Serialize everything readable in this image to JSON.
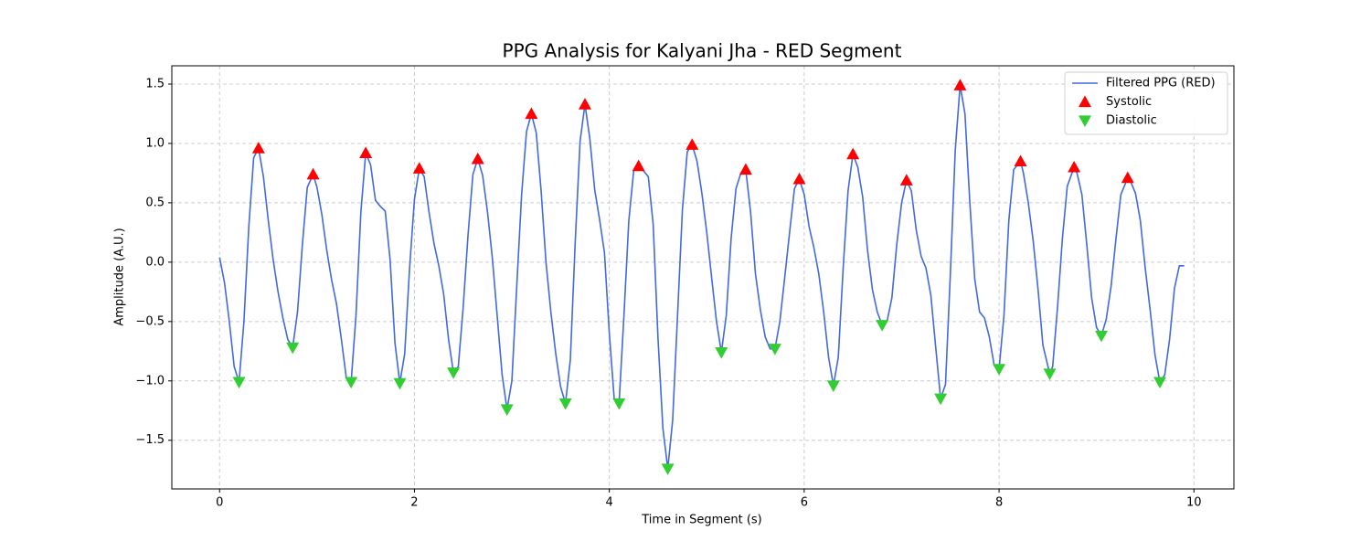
{
  "chart_data": {
    "type": "line",
    "title": "PPG Analysis for Kalyani Jha - RED Segment",
    "x_label": "Time in Segment (s)",
    "y_label": "Amplitude (A.U.)",
    "xlim": [
      -0.49,
      10.41
    ],
    "ylim": [
      -1.91,
      1.654
    ],
    "xticks": [
      0,
      2,
      4,
      6,
      8,
      10
    ],
    "yticks": [
      {
        "value": -1.5,
        "label": "−1.5"
      },
      {
        "value": -1.0,
        "label": "−1.0"
      },
      {
        "value": -0.5,
        "label": "−0.5"
      },
      {
        "value": 0,
        "label": "0.0"
      },
      {
        "value": 0.5,
        "label": "0.5"
      },
      {
        "value": 1.0,
        "label": "1.0"
      },
      {
        "value": 1.5,
        "label": "1.5"
      }
    ],
    "grid": true,
    "legend": "upper right",
    "series": [
      {
        "name": "Filtered PPG (RED)",
        "color": "#4169e1",
        "kind": "line",
        "x": [
          0,
          0.05,
          0.1,
          0.15,
          0.2,
          0.25,
          0.3,
          0.35,
          0.4,
          0.45,
          0.5,
          0.55,
          0.6,
          0.65,
          0.7,
          0.75,
          0.8,
          0.85,
          0.9,
          0.96,
          1.0,
          1.05,
          1.1,
          1.15,
          1.2,
          1.25,
          1.3,
          1.35,
          1.4,
          1.45,
          1.5,
          1.55,
          1.6,
          1.65,
          1.7,
          1.75,
          1.8,
          1.85,
          1.9,
          1.95,
          2.0,
          2.05,
          2.1,
          2.15,
          2.2,
          2.25,
          2.3,
          2.35,
          2.4,
          2.45,
          2.5,
          2.55,
          2.6,
          2.65,
          2.7,
          2.75,
          2.8,
          2.85,
          2.9,
          2.95,
          3.0,
          3.05,
          3.1,
          3.15,
          3.2,
          3.25,
          3.3,
          3.35,
          3.4,
          3.45,
          3.5,
          3.55,
          3.6,
          3.65,
          3.7,
          3.75,
          3.8,
          3.85,
          3.9,
          3.95,
          4.0,
          4.05,
          4.1,
          4.15,
          4.2,
          4.25,
          4.3,
          4.35,
          4.4,
          4.45,
          4.5,
          4.55,
          4.6,
          4.65,
          4.7,
          4.75,
          4.8,
          4.85,
          4.9,
          4.95,
          5.0,
          5.05,
          5.1,
          5.15,
          5.2,
          5.25,
          5.3,
          5.35,
          5.4,
          5.45,
          5.5,
          5.55,
          5.6,
          5.65,
          5.7,
          5.75,
          5.8,
          5.85,
          5.9,
          5.95,
          6.0,
          6.05,
          6.1,
          6.15,
          6.2,
          6.25,
          6.3,
          6.35,
          6.4,
          6.45,
          6.5,
          6.55,
          6.6,
          6.65,
          6.7,
          6.75,
          6.8,
          6.85,
          6.9,
          6.95,
          7.0,
          7.05,
          7.1,
          7.15,
          7.2,
          7.25,
          7.3,
          7.35,
          7.4,
          7.45,
          7.5,
          7.55,
          7.6,
          7.65,
          7.7,
          7.75,
          7.8,
          7.85,
          7.9,
          7.95,
          8.0,
          8.05,
          8.1,
          8.15,
          8.22,
          8.25,
          8.3,
          8.35,
          8.4,
          8.45,
          8.52,
          8.55,
          8.6,
          8.65,
          8.7,
          8.77,
          8.8,
          8.85,
          8.9,
          8.95,
          9.0,
          9.05,
          9.1,
          9.15,
          9.2,
          9.25,
          9.32,
          9.35,
          9.4,
          9.45,
          9.5,
          9.55,
          9.6,
          9.65,
          9.7,
          9.75,
          9.8,
          9.85,
          9.9
        ],
        "values": [
          0.04,
          -0.17,
          -0.5,
          -0.88,
          -1.01,
          -0.5,
          0.3,
          0.88,
          0.96,
          0.72,
          0.35,
          0.02,
          -0.25,
          -0.47,
          -0.65,
          -0.72,
          -0.42,
          0.15,
          0.63,
          0.74,
          0.63,
          0.4,
          0.1,
          -0.15,
          -0.35,
          -0.65,
          -0.97,
          -1.01,
          -0.45,
          0.42,
          0.92,
          0.82,
          0.52,
          0.47,
          0.43,
          0.02,
          -0.68,
          -1.02,
          -0.77,
          -0.05,
          0.53,
          0.79,
          0.72,
          0.42,
          0.16,
          -0.03,
          -0.27,
          -0.65,
          -0.93,
          -0.88,
          -0.38,
          0.23,
          0.74,
          0.87,
          0.73,
          0.42,
          0.03,
          -0.46,
          -0.95,
          -1.24,
          -1.0,
          -0.2,
          0.57,
          1.1,
          1.25,
          1.09,
          0.6,
          0.0,
          -0.42,
          -0.77,
          -1.05,
          -1.19,
          -0.82,
          0.17,
          1.02,
          1.33,
          1.04,
          0.61,
          0.36,
          0.08,
          -0.6,
          -1.15,
          -1.19,
          -0.45,
          0.35,
          0.77,
          0.81,
          0.77,
          0.72,
          0.32,
          -0.65,
          -1.4,
          -1.74,
          -1.33,
          -0.45,
          0.44,
          0.93,
          0.99,
          0.85,
          0.58,
          0.25,
          -0.13,
          -0.5,
          -0.76,
          -0.45,
          0.2,
          0.62,
          0.75,
          0.78,
          0.42,
          -0.1,
          -0.4,
          -0.63,
          -0.73,
          -0.73,
          -0.5,
          -0.13,
          0.25,
          0.62,
          0.7,
          0.57,
          0.3,
          0.12,
          -0.1,
          -0.42,
          -0.8,
          -1.04,
          -0.8,
          -0.05,
          0.6,
          0.91,
          0.8,
          0.55,
          0.1,
          -0.23,
          -0.42,
          -0.53,
          -0.5,
          -0.3,
          0.15,
          0.5,
          0.69,
          0.6,
          0.27,
          0.05,
          -0.05,
          -0.28,
          -0.72,
          -1.15,
          -1.03,
          -0.1,
          0.94,
          1.49,
          1.25,
          0.5,
          -0.14,
          -0.42,
          -0.47,
          -0.63,
          -0.87,
          -0.9,
          -0.45,
          0.35,
          0.78,
          0.85,
          0.75,
          0.5,
          0.18,
          -0.23,
          -0.7,
          -0.94,
          -0.88,
          -0.38,
          0.2,
          0.64,
          0.8,
          0.75,
          0.57,
          0.15,
          -0.3,
          -0.55,
          -0.62,
          -0.48,
          -0.2,
          0.2,
          0.57,
          0.71,
          0.68,
          0.58,
          0.35,
          -0.05,
          -0.4,
          -0.78,
          -1.01,
          -0.95,
          -0.65,
          -0.22,
          -0.03,
          -0.03
        ]
      },
      {
        "name": "Systolic",
        "color": "#ff0000",
        "kind": "up",
        "x": [
          0.4,
          0.96,
          1.5,
          2.05,
          2.65,
          3.2,
          3.75,
          4.3,
          4.85,
          5.4,
          5.95,
          6.5,
          7.05,
          7.6,
          8.22,
          8.77,
          9.32
        ],
        "values": [
          0.96,
          0.74,
          0.92,
          0.79,
          0.87,
          1.25,
          1.33,
          0.81,
          0.99,
          0.78,
          0.7,
          0.91,
          0.69,
          1.49,
          0.85,
          0.8,
          0.71
        ]
      },
      {
        "name": "Diastolic",
        "color": "#32cd32",
        "kind": "down",
        "x": [
          0.2,
          0.75,
          1.35,
          1.85,
          2.4,
          2.95,
          3.55,
          4.1,
          4.6,
          5.15,
          5.7,
          6.3,
          6.8,
          7.4,
          8.0,
          8.52,
          9.05,
          9.65
        ],
        "values": [
          -1.01,
          -0.72,
          -1.01,
          -1.02,
          -0.93,
          -1.24,
          -1.19,
          -1.19,
          -1.74,
          -0.76,
          -0.73,
          -1.04,
          -0.53,
          -1.15,
          -0.9,
          -0.94,
          -0.62,
          -1.01
        ]
      }
    ]
  }
}
